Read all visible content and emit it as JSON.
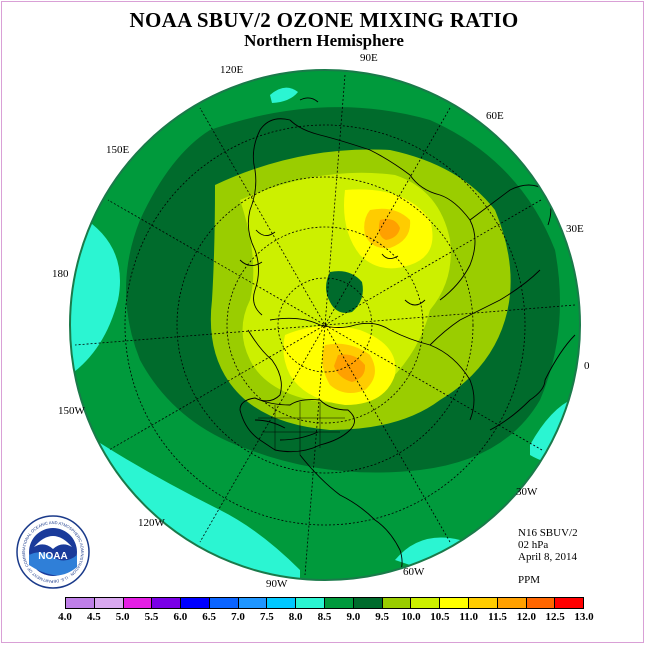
{
  "title": "NOAA SBUV/2 OZONE MIXING RATIO",
  "subtitle": "Northern Hemisphere",
  "longitude_labels": {
    "lon_90e": "90E",
    "lon_120e": "120E",
    "lon_60e": "60E",
    "lon_150e": "150E",
    "lon_30e": "30E",
    "lon_180": "180",
    "lon_0": "0",
    "lon_150w": "150W",
    "lon_30w": "30W",
    "lon_120w": "120W",
    "lon_60w": "60W",
    "lon_90w": "90W"
  },
  "info": {
    "instrument": "N16 SBUV/2",
    "level": "02 hPa",
    "date": "April 8, 2014",
    "units": "PPM"
  },
  "colorbar": {
    "ticks": [
      "4.0",
      "4.5",
      "5.0",
      "5.5",
      "6.0",
      "6.5",
      "7.0",
      "7.5",
      "8.0",
      "8.5",
      "9.0",
      "9.5",
      "10.0",
      "10.5",
      "11.0",
      "11.5",
      "12.0",
      "12.5",
      "13.0"
    ],
    "colors": [
      "#bf7fe8",
      "#d9a8f0",
      "#e41ee4",
      "#7a00e6",
      "#0000ff",
      "#0a64ff",
      "#1e96ff",
      "#00c8ff",
      "#2bf5d2",
      "#009a3c",
      "#006b2c",
      "#9acd00",
      "#ccf000",
      "#ffff00",
      "#ffcc00",
      "#ffa000",
      "#ff6600",
      "#ff0000",
      "#8b5a2b"
    ]
  },
  "logo": {
    "text": "NOAA",
    "ring_text": "NATIONAL OCEANIC AND ATMOSPHERIC ADMINISTRATION · U.S. DEPARTMENT OF COMMERCE"
  }
}
